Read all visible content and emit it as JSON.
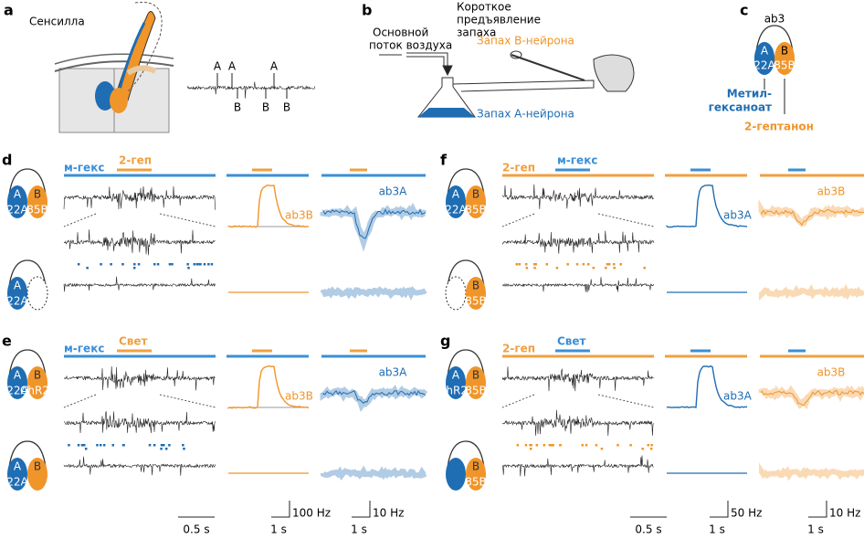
{
  "panel_a": {
    "label": "a",
    "title": "Сенсилла",
    "spike_labels": [
      "A",
      "A",
      "B",
      "B",
      "A",
      "B"
    ]
  },
  "panel_b": {
    "label": "b",
    "main_flow": [
      "Основной",
      "поток воздуха"
    ],
    "pulse": [
      "Короткое",
      "предъявление",
      "запаха"
    ],
    "odor_b": "Запах В-нейрона",
    "odor_a": "Запах А-нейрона"
  },
  "panel_c": {
    "label": "c",
    "sensillum": "ab3",
    "neuron_a": "A",
    "neuron_b": "B",
    "receptor_a": "22A",
    "receptor_b": "85B",
    "odor_a": [
      "Метил-",
      "гексаноат"
    ],
    "odor_b": "2-гептанон"
  },
  "colors": {
    "a_neuron": "#1f6db3",
    "b_neuron": "#f0952a"
  },
  "panels": [
    {
      "label": "d",
      "stim1": "м-гекс",
      "stim1_color": "#3a8fd6",
      "stim2": "2-геп",
      "stim2_color": "#f0a040",
      "rate_label": "ab3B",
      "lfp_label": "ab3A",
      "cell_top": {
        "a": "A",
        "b": "B",
        "ra": "22A",
        "rb": "85B"
      },
      "cell_bottom": {
        "a": "A",
        "ra": "22A"
      }
    },
    {
      "label": "e",
      "stim1": "м-гекс",
      "stim1_color": "#3a8fd6",
      "stim2": "Свет",
      "stim2_color": "#f0a040",
      "rate_label": "ab3B",
      "lfp_label": "ab3A",
      "cell_top": {
        "a": "A",
        "b": "B",
        "ra": "22A",
        "rb": "ChR2*"
      },
      "cell_bottom": {
        "a": "A",
        "b": "B",
        "ra": "22A"
      }
    },
    {
      "label": "f",
      "stim1": "2-геп",
      "stim1_color": "#f0a040",
      "stim2": "м-гекс",
      "stim2_color": "#3a8fd6",
      "rate_label": "ab3A",
      "lfp_label": "ab3B",
      "cell_top": {
        "a": "A",
        "b": "B",
        "ra": "22A",
        "rb": "85B"
      },
      "cell_bottom": {
        "b": "B",
        "rb": "85B"
      }
    },
    {
      "label": "g",
      "stim1": "2-геп",
      "stim1_color": "#f0a040",
      "stim2": "Свет",
      "stim2_color": "#3a8fd6",
      "rate_label": "ab3A",
      "lfp_label": "ab3B",
      "cell_top": {
        "a": "A",
        "b": "B",
        "ra": "ChR2*",
        "rb": "85B"
      },
      "cell_bottom": {
        "b": "B",
        "rb": "85B"
      }
    }
  ],
  "scale_left": {
    "time": "0.5 s",
    "rate_time": "1 s",
    "rate": "100 Hz",
    "lfp_time": "1 s",
    "lfp": "10 Hz"
  },
  "scale_right": {
    "time": "0.5 s",
    "rate_time": "1 s",
    "rate": "50 Hz",
    "lfp_time": "1 s",
    "lfp": "10 Hz"
  }
}
